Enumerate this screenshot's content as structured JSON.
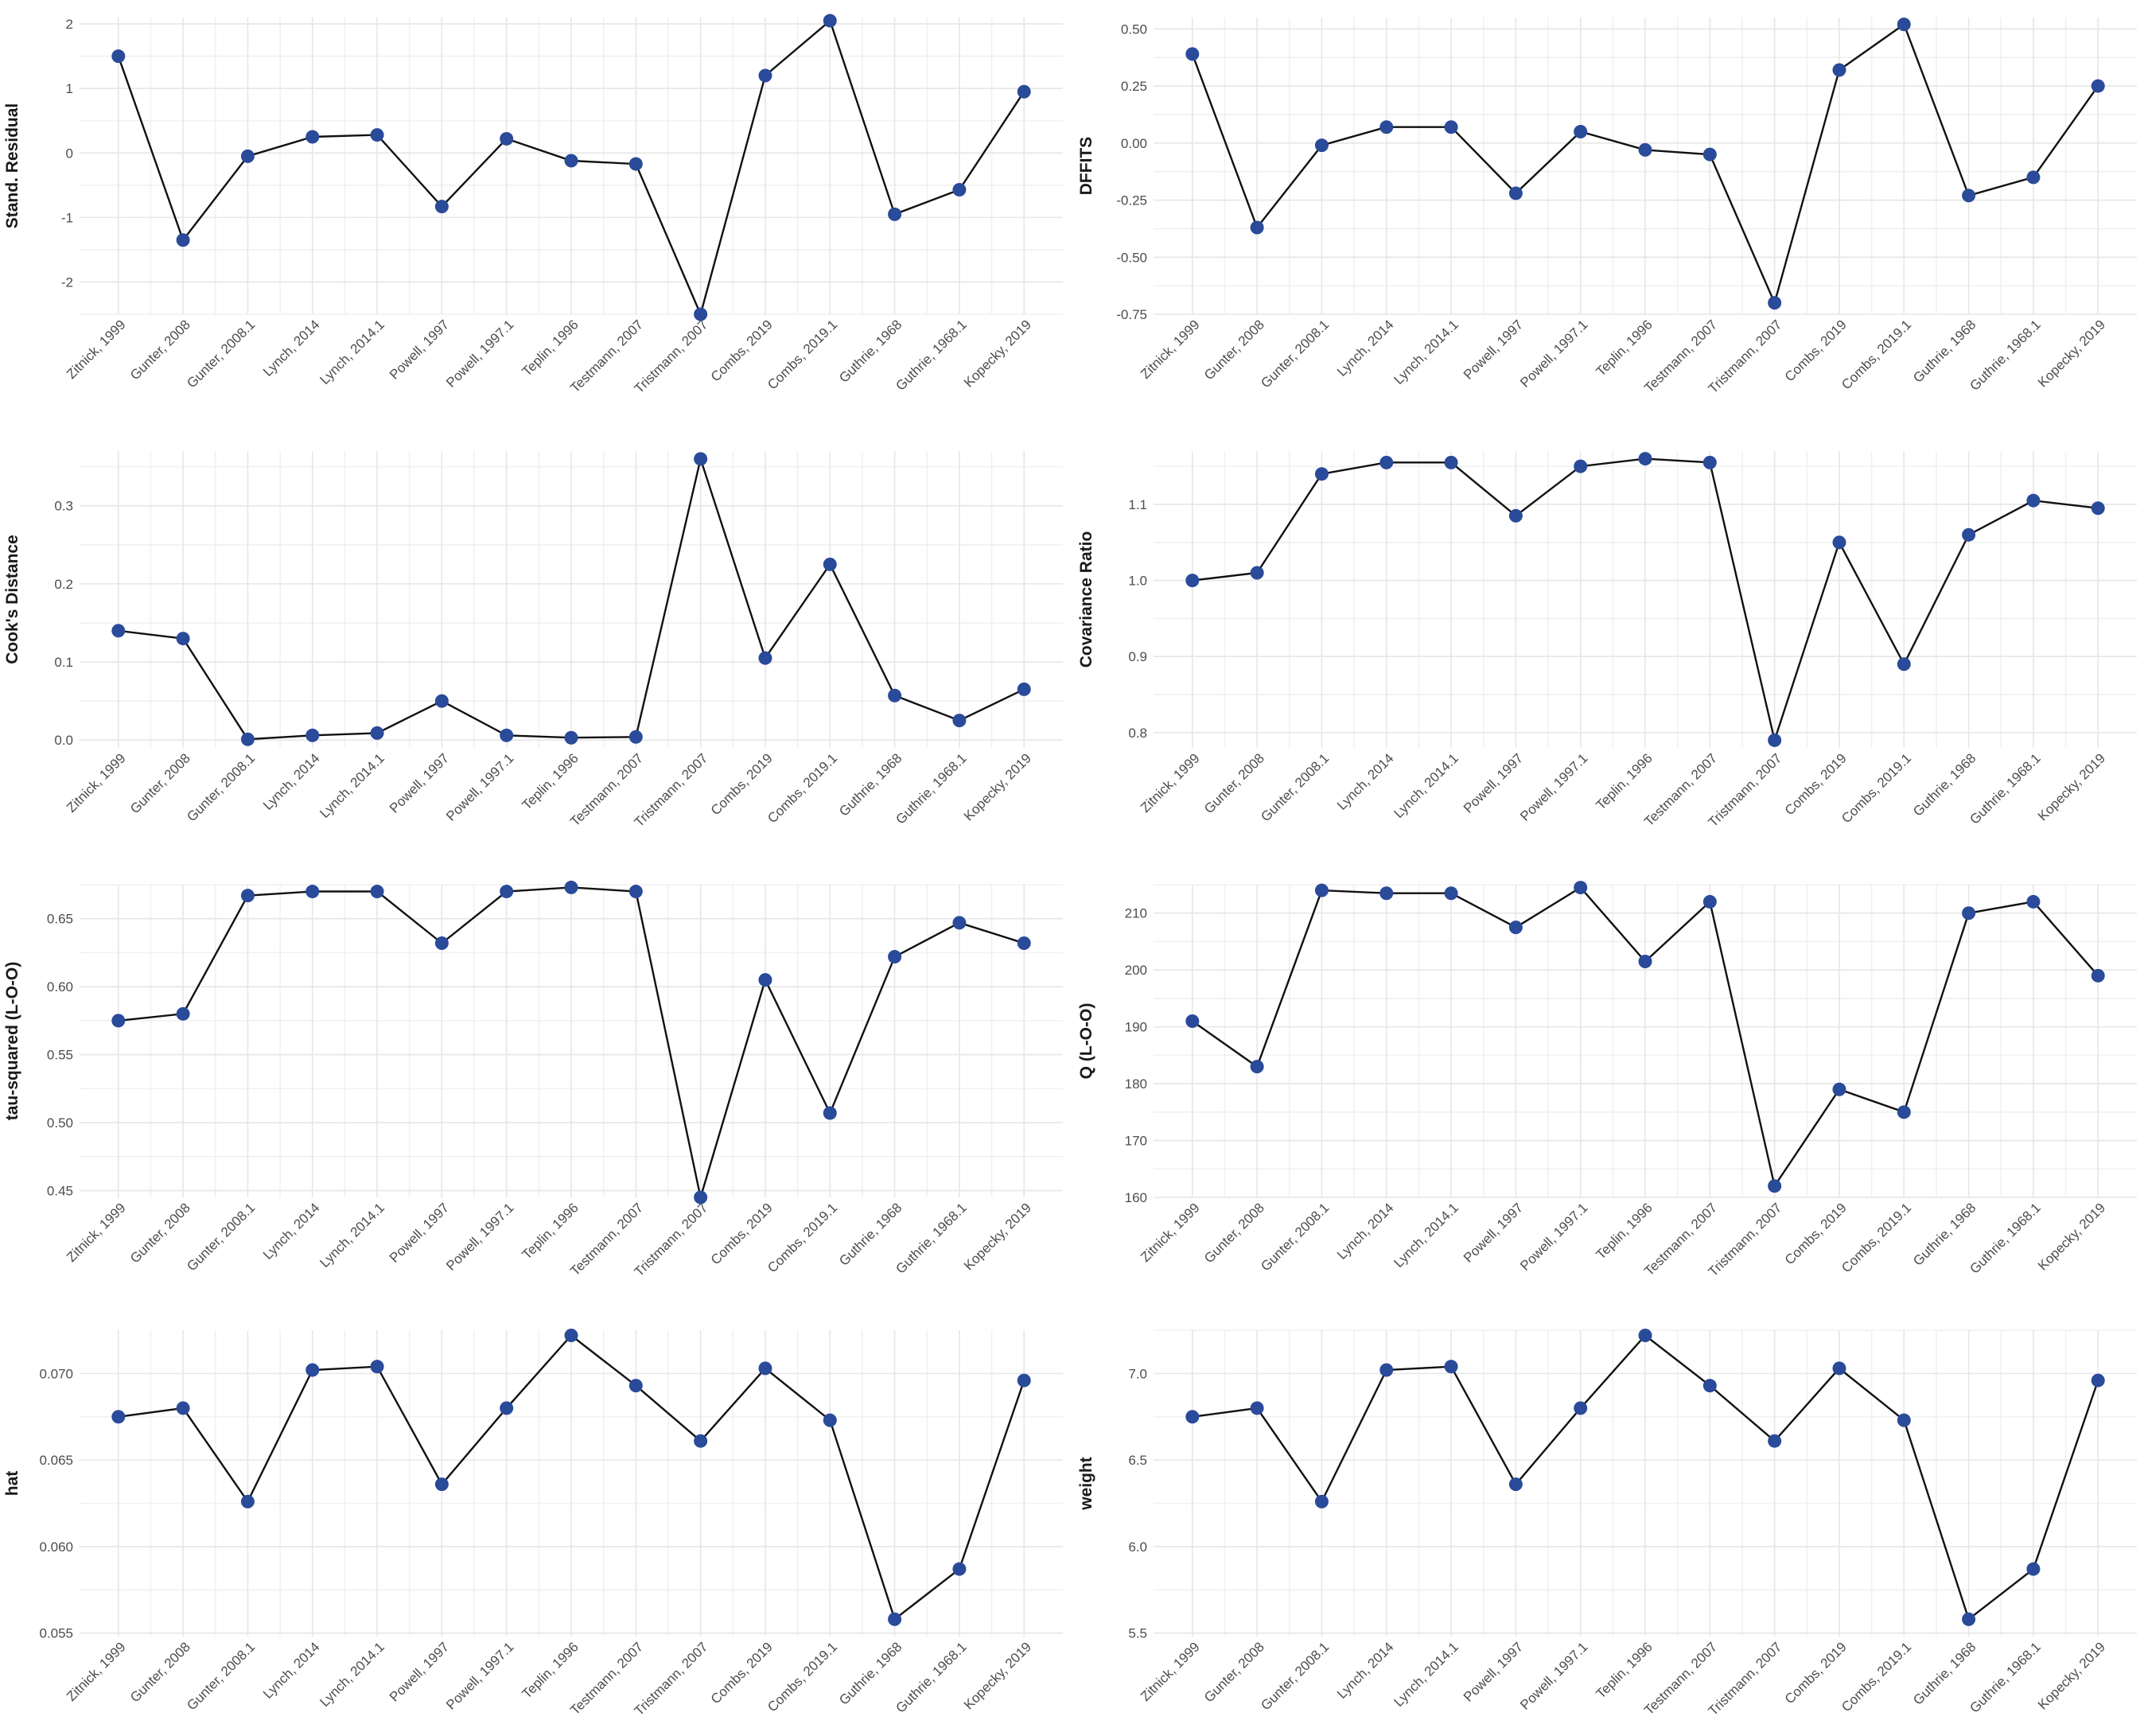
{
  "style": {
    "point_color": "#2a4a9a",
    "line_color": "#111111",
    "grid_color": "#e6e6e6",
    "background": "#ffffff"
  },
  "chart_data": [
    {
      "type": "line",
      "ylabel": "Stand. Residual",
      "categories": [
        "Zitnick, 1999",
        "Gunter, 2008",
        "Gunter, 2008.1",
        "Lynch, 2014",
        "Lynch, 2014.1",
        "Powell, 1997",
        "Powell, 1997.1",
        "Teplin, 1996",
        "Testmann, 2007",
        "Tristmann, 2007",
        "Combs, 2019",
        "Combs, 2019.1",
        "Guthrie, 1968",
        "Guthrie, 1968.1",
        "Kopecky, 2019"
      ],
      "values": [
        1.5,
        -1.35,
        -0.05,
        0.25,
        0.28,
        -0.83,
        0.22,
        -0.12,
        -0.17,
        -2.5,
        1.2,
        2.05,
        -0.95,
        -0.57,
        0.95
      ],
      "ylim": [
        -2.5,
        2.1
      ],
      "yticks": [
        2,
        1,
        0,
        -1,
        -2
      ],
      "ytick_labels": [
        "2",
        "1",
        "0",
        "-1",
        "-2"
      ]
    },
    {
      "type": "line",
      "ylabel": "DFFITS",
      "categories": [
        "Zitnick, 1999",
        "Gunter, 2008",
        "Gunter, 2008.1",
        "Lynch, 2014",
        "Lynch, 2014.1",
        "Powell, 1997",
        "Powell, 1997.1",
        "Teplin, 1996",
        "Testmann, 2007",
        "Tristmann, 2007",
        "Combs, 2019",
        "Combs, 2019.1",
        "Guthrie, 1968",
        "Guthrie, 1968.1",
        "Kopecky, 2019"
      ],
      "values": [
        0.39,
        -0.37,
        -0.01,
        0.07,
        0.07,
        -0.22,
        0.05,
        -0.03,
        -0.05,
        -0.7,
        0.32,
        0.52,
        -0.23,
        -0.15,
        0.25
      ],
      "ylim": [
        -0.75,
        0.55
      ],
      "yticks": [
        0.5,
        0.25,
        0,
        -0.25,
        -0.5,
        -0.75
      ],
      "ytick_labels": [
        "0.50",
        "0.25",
        "0.00",
        "-0.25",
        "-0.50",
        "-0.75"
      ]
    },
    {
      "type": "line",
      "ylabel": "Cook's Distance",
      "categories": [
        "Zitnick, 1999",
        "Gunter, 2008",
        "Gunter, 2008.1",
        "Lynch, 2014",
        "Lynch, 2014.1",
        "Powell, 1997",
        "Powell, 1997.1",
        "Teplin, 1996",
        "Testmann, 2007",
        "Tristmann, 2007",
        "Combs, 2019",
        "Combs, 2019.1",
        "Guthrie, 1968",
        "Guthrie, 1968.1",
        "Kopecky, 2019"
      ],
      "values": [
        0.14,
        0.13,
        0.001,
        0.006,
        0.009,
        0.05,
        0.006,
        0.003,
        0.004,
        0.36,
        0.105,
        0.225,
        0.057,
        0.025,
        0.065
      ],
      "ylim": [
        -0.01,
        0.37
      ],
      "yticks": [
        0.3,
        0.2,
        0.1,
        0
      ],
      "ytick_labels": [
        "0.3",
        "0.2",
        "0.1",
        "0.0"
      ]
    },
    {
      "type": "line",
      "ylabel": "Covariance Ratio",
      "categories": [
        "Zitnick, 1999",
        "Gunter, 2008",
        "Gunter, 2008.1",
        "Lynch, 2014",
        "Lynch, 2014.1",
        "Powell, 1997",
        "Powell, 1997.1",
        "Teplin, 1996",
        "Testmann, 2007",
        "Tristmann, 2007",
        "Combs, 2019",
        "Combs, 2019.1",
        "Guthrie, 1968",
        "Guthrie, 1968.1",
        "Kopecky, 2019"
      ],
      "values": [
        1.0,
        1.01,
        1.14,
        1.155,
        1.155,
        1.085,
        1.15,
        1.16,
        1.155,
        0.79,
        1.05,
        0.89,
        1.06,
        1.105,
        1.095
      ],
      "ylim": [
        0.78,
        1.17
      ],
      "yticks": [
        1.1,
        1.0,
        0.9,
        0.8
      ],
      "ytick_labels": [
        "1.1",
        "1.0",
        "0.9",
        "0.8"
      ]
    },
    {
      "type": "line",
      "ylabel": "tau-squared (L-O-O)",
      "categories": [
        "Zitnick, 1999",
        "Gunter, 2008",
        "Gunter, 2008.1",
        "Lynch, 2014",
        "Lynch, 2014.1",
        "Powell, 1997",
        "Powell, 1997.1",
        "Teplin, 1996",
        "Testmann, 2007",
        "Tristmann, 2007",
        "Combs, 2019",
        "Combs, 2019.1",
        "Guthrie, 1968",
        "Guthrie, 1968.1",
        "Kopecky, 2019"
      ],
      "values": [
        0.575,
        0.58,
        0.667,
        0.67,
        0.67,
        0.632,
        0.67,
        0.673,
        0.67,
        0.445,
        0.605,
        0.507,
        0.622,
        0.647,
        0.632
      ],
      "ylim": [
        0.445,
        0.675
      ],
      "yticks": [
        0.65,
        0.6,
        0.55,
        0.5,
        0.45
      ],
      "ytick_labels": [
        "0.65",
        "0.60",
        "0.55",
        "0.50",
        "0.45"
      ]
    },
    {
      "type": "line",
      "ylabel": "Q (L-O-O)",
      "categories": [
        "Zitnick, 1999",
        "Gunter, 2008",
        "Gunter, 2008.1",
        "Lynch, 2014",
        "Lynch, 2014.1",
        "Powell, 1997",
        "Powell, 1997.1",
        "Teplin, 1996",
        "Testmann, 2007",
        "Tristmann, 2007",
        "Combs, 2019",
        "Combs, 2019.1",
        "Guthrie, 1968",
        "Guthrie, 1968.1",
        "Kopecky, 2019"
      ],
      "values": [
        191,
        183,
        214,
        213.5,
        213.5,
        207.5,
        214.5,
        201.5,
        212,
        162,
        179,
        175,
        210,
        212,
        199
      ],
      "ylim": [
        160,
        215
      ],
      "yticks": [
        210,
        200,
        190,
        180,
        170,
        160
      ],
      "ytick_labels": [
        "210",
        "200",
        "190",
        "180",
        "170",
        "160"
      ]
    },
    {
      "type": "line",
      "ylabel": "hat",
      "categories": [
        "Zitnick, 1999",
        "Gunter, 2008",
        "Gunter, 2008.1",
        "Lynch, 2014",
        "Lynch, 2014.1",
        "Powell, 1997",
        "Powell, 1997.1",
        "Teplin, 1996",
        "Testmann, 2007",
        "Tristmann, 2007",
        "Combs, 2019",
        "Combs, 2019.1",
        "Guthrie, 1968",
        "Guthrie, 1968.1",
        "Kopecky, 2019"
      ],
      "values": [
        0.0675,
        0.068,
        0.0626,
        0.0702,
        0.0704,
        0.0636,
        0.068,
        0.0722,
        0.0693,
        0.0661,
        0.0703,
        0.0673,
        0.0558,
        0.0587,
        0.0696
      ],
      "ylim": [
        0.0548,
        0.0725
      ],
      "yticks": [
        0.07,
        0.065,
        0.06,
        0.055
      ],
      "ytick_labels": [
        "0.070",
        "0.065",
        "0.060",
        "0.055"
      ]
    },
    {
      "type": "line",
      "ylabel": "weight",
      "categories": [
        "Zitnick, 1999",
        "Gunter, 2008",
        "Gunter, 2008.1",
        "Lynch, 2014",
        "Lynch, 2014.1",
        "Powell, 1997",
        "Powell, 1997.1",
        "Teplin, 1996",
        "Testmann, 2007",
        "Tristmann, 2007",
        "Combs, 2019",
        "Combs, 2019.1",
        "Guthrie, 1968",
        "Guthrie, 1968.1",
        "Kopecky, 2019"
      ],
      "values": [
        6.75,
        6.8,
        6.26,
        7.02,
        7.04,
        6.36,
        6.8,
        7.22,
        6.93,
        6.61,
        7.03,
        6.73,
        5.58,
        5.87,
        6.96
      ],
      "ylim": [
        5.48,
        7.25
      ],
      "yticks": [
        7.0,
        6.5,
        6.0,
        5.5
      ],
      "ytick_labels": [
        "7.0",
        "6.5",
        "6.0",
        "5.5"
      ]
    }
  ]
}
